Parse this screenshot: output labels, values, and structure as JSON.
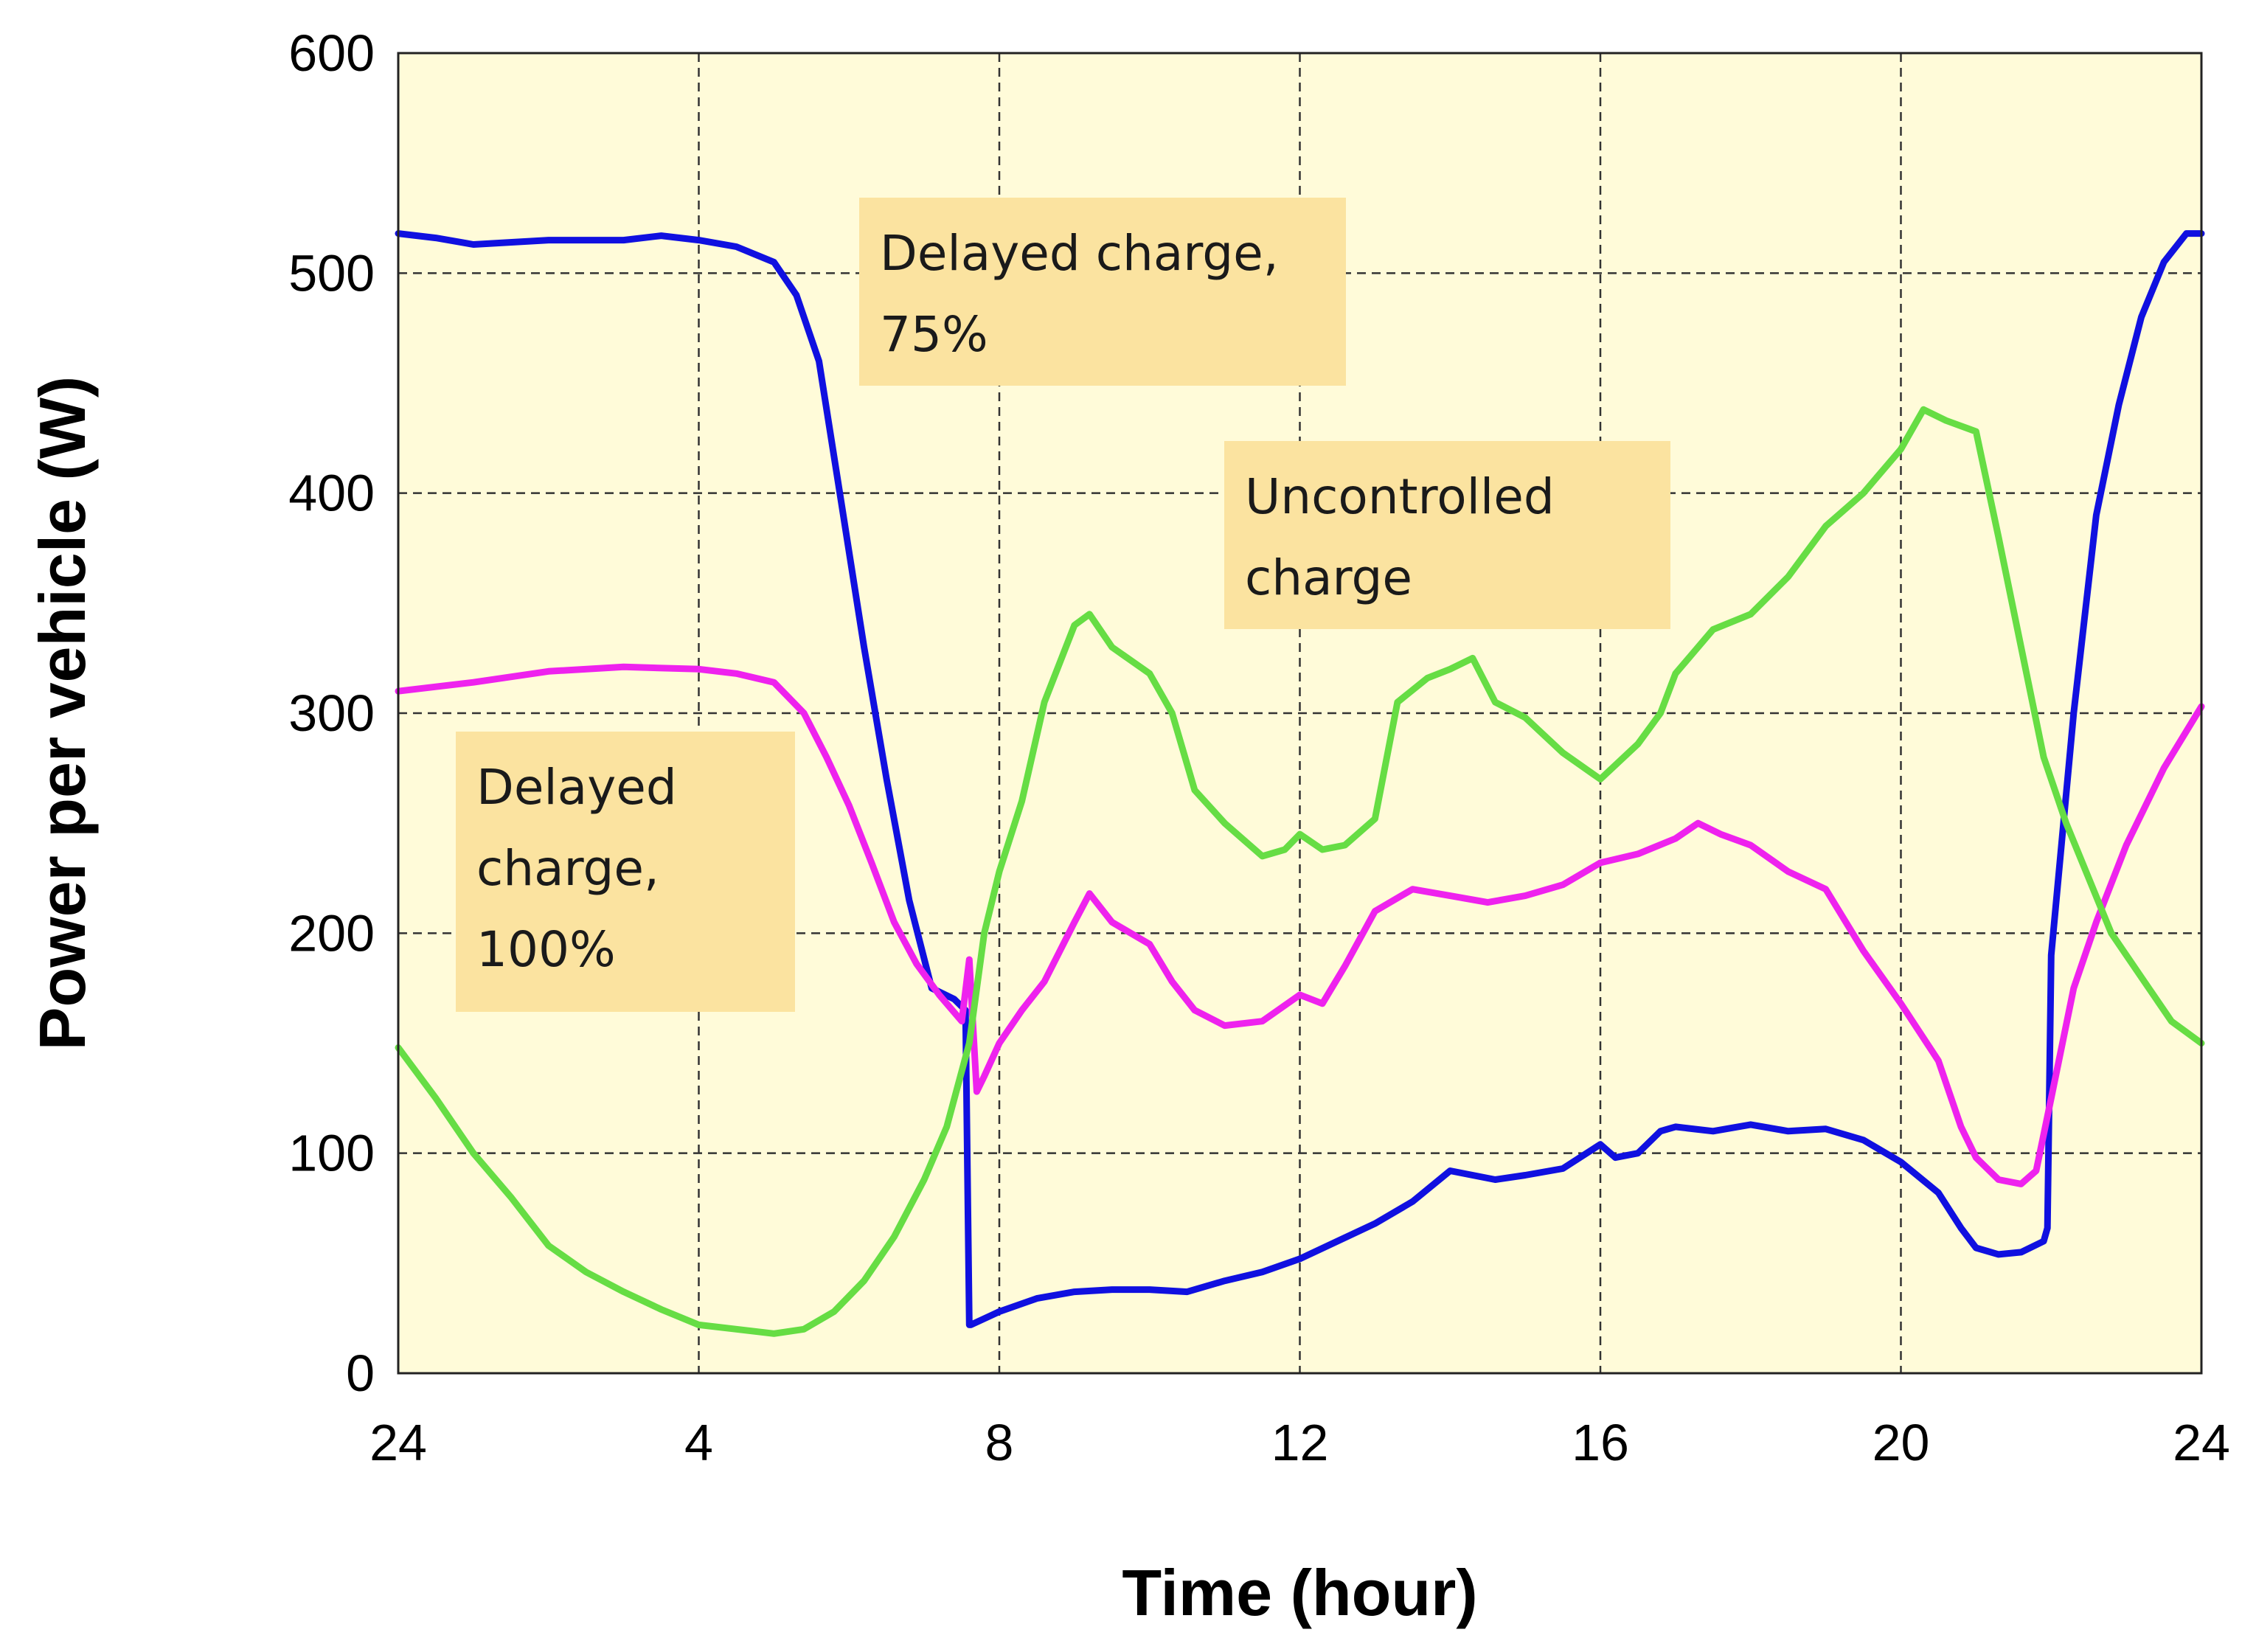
{
  "chart_data": {
    "type": "line",
    "xlabel": "Time (hour)",
    "ylabel": "Power per vehicle (W)",
    "x_tick_labels": [
      "24",
      "4",
      "8",
      "12",
      "16",
      "20",
      "24"
    ],
    "y_tick_labels": [
      "0",
      "100",
      "200",
      "300",
      "400",
      "500",
      "600"
    ],
    "xlim": [
      0,
      24
    ],
    "ylim": [
      0,
      600
    ],
    "grid": true,
    "colors": {
      "plot_background": "#fffbd9",
      "annotation_background": "#fbe3a0",
      "grid": "#333333"
    },
    "series": [
      {
        "color": "#1010e0",
        "x": [
          0,
          0.5,
          1,
          2,
          3,
          3.5,
          4,
          4.5,
          5,
          5.3,
          5.6,
          5.9,
          6.2,
          6.5,
          6.8,
          7.1,
          7.4,
          7.55,
          7.6,
          7.62,
          8,
          8.5,
          9,
          9.5,
          10,
          10.5,
          11,
          11.5,
          12,
          12.5,
          13,
          13.5,
          14,
          14.3,
          14.6,
          15,
          15.5,
          16,
          16.2,
          16.5,
          16.8,
          17,
          17.5,
          18,
          18.5,
          19,
          19.5,
          20,
          20.5,
          20.8,
          21,
          21.3,
          21.6,
          21.9,
          21.95,
          22,
          22.3,
          22.6,
          22.9,
          23.2,
          23.5,
          23.8,
          24
        ],
        "y": [
          518,
          516,
          513,
          515,
          515,
          517,
          515,
          512,
          505,
          490,
          460,
          395,
          330,
          270,
          215,
          175,
          170,
          165,
          22,
          22,
          28,
          34,
          37,
          38,
          38,
          37,
          42,
          46,
          52,
          60,
          68,
          78,
          92,
          90,
          88,
          90,
          93,
          104,
          98,
          100,
          110,
          112,
          110,
          113,
          110,
          111,
          106,
          96,
          82,
          66,
          57,
          54,
          55,
          60,
          66,
          190,
          300,
          390,
          440,
          480,
          505,
          518,
          518
        ]
      },
      {
        "color": "#ee22ee",
        "x": [
          0,
          0.5,
          1,
          2,
          3,
          4,
          4.5,
          5,
          5.4,
          5.7,
          6,
          6.3,
          6.6,
          6.9,
          7.2,
          7.5,
          7.6,
          7.7,
          7.8,
          8,
          8.3,
          8.6,
          9,
          9.2,
          9.5,
          10,
          10.3,
          10.6,
          11,
          11.5,
          12,
          12.3,
          12.6,
          13,
          13.5,
          14,
          14.5,
          15,
          15.5,
          16,
          16.5,
          17,
          17.3,
          17.6,
          18,
          18.5,
          19,
          19.5,
          20,
          20.5,
          20.8,
          21,
          21.3,
          21.6,
          21.8,
          22,
          22.3,
          22.6,
          23,
          23.5,
          24
        ],
        "y": [
          310,
          312,
          314,
          319,
          321,
          320,
          318,
          314,
          300,
          280,
          258,
          232,
          205,
          186,
          172,
          160,
          188,
          128,
          135,
          150,
          165,
          178,
          205,
          218,
          205,
          195,
          178,
          165,
          158,
          160,
          172,
          168,
          185,
          210,
          220,
          217,
          214,
          217,
          222,
          232,
          236,
          243,
          250,
          245,
          240,
          228,
          220,
          192,
          168,
          142,
          112,
          98,
          88,
          86,
          92,
          125,
          175,
          205,
          240,
          275,
          303
        ]
      },
      {
        "color": "#66dd44",
        "x": [
          0,
          0.5,
          1,
          1.5,
          2,
          2.5,
          3,
          3.5,
          4,
          4.5,
          5,
          5.4,
          5.8,
          6.2,
          6.6,
          7,
          7.3,
          7.6,
          7.8,
          8,
          8.3,
          8.6,
          9,
          9.2,
          9.5,
          10,
          10.3,
          10.6,
          11,
          11.5,
          11.8,
          12,
          12.3,
          12.6,
          13,
          13.3,
          13.7,
          14,
          14.3,
          14.6,
          15,
          15.5,
          16,
          16.5,
          16.8,
          17,
          17.5,
          18,
          18.5,
          19,
          19.5,
          20,
          20.3,
          20.6,
          21,
          21.3,
          21.6,
          21.9,
          22.2,
          22.5,
          22.8,
          23.2,
          23.6,
          24
        ],
        "y": [
          148,
          125,
          100,
          80,
          58,
          46,
          37,
          29,
          22,
          20,
          18,
          20,
          28,
          42,
          62,
          88,
          112,
          150,
          200,
          228,
          260,
          305,
          340,
          345,
          330,
          318,
          300,
          265,
          250,
          235,
          238,
          245,
          238,
          240,
          252,
          305,
          316,
          320,
          325,
          305,
          298,
          282,
          270,
          286,
          300,
          318,
          338,
          345,
          362,
          385,
          400,
          420,
          438,
          433,
          428,
          380,
          330,
          280,
          250,
          225,
          200,
          180,
          160,
          150
        ]
      }
    ],
    "annotations": [
      {
        "lines": [
          "Delayed charge,",
          "75%"
        ]
      },
      {
        "lines": [
          "Uncontrolled",
          "charge"
        ]
      },
      {
        "lines": [
          "Delayed",
          "charge,",
          "100%"
        ]
      }
    ]
  }
}
